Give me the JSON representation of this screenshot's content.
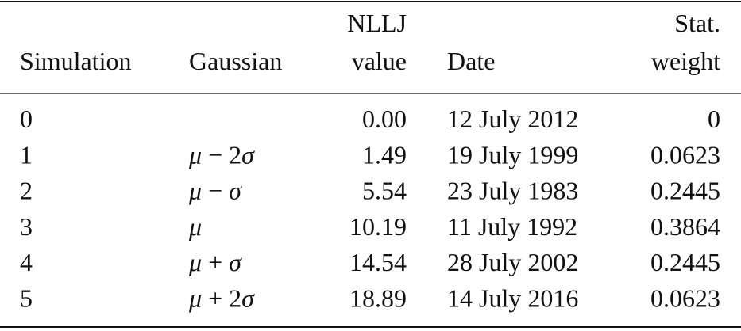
{
  "table": {
    "header": [
      [
        "Simulation"
      ],
      [
        "Gaussian"
      ],
      [
        "NLLJ",
        "value"
      ],
      [
        "Date"
      ],
      [
        "Stat.",
        "weight"
      ]
    ],
    "rows": [
      [
        "0",
        null,
        "0.00",
        "12 July 2012",
        "0"
      ],
      [
        "1",
        "μ − 2σ",
        "1.49",
        "19 July 1999",
        "0.0623"
      ],
      [
        "2",
        "μ − σ",
        "5.54",
        "23 July 1983",
        "0.2445"
      ],
      [
        "3",
        "μ",
        "10.19",
        "11 July 1992",
        "0.3864"
      ],
      [
        "4",
        "μ + σ",
        "14.54",
        "28 July 2002",
        "0.2445"
      ],
      [
        "5",
        "μ + 2σ",
        "18.89",
        "14 July 2016",
        "0.0623"
      ]
    ]
  }
}
